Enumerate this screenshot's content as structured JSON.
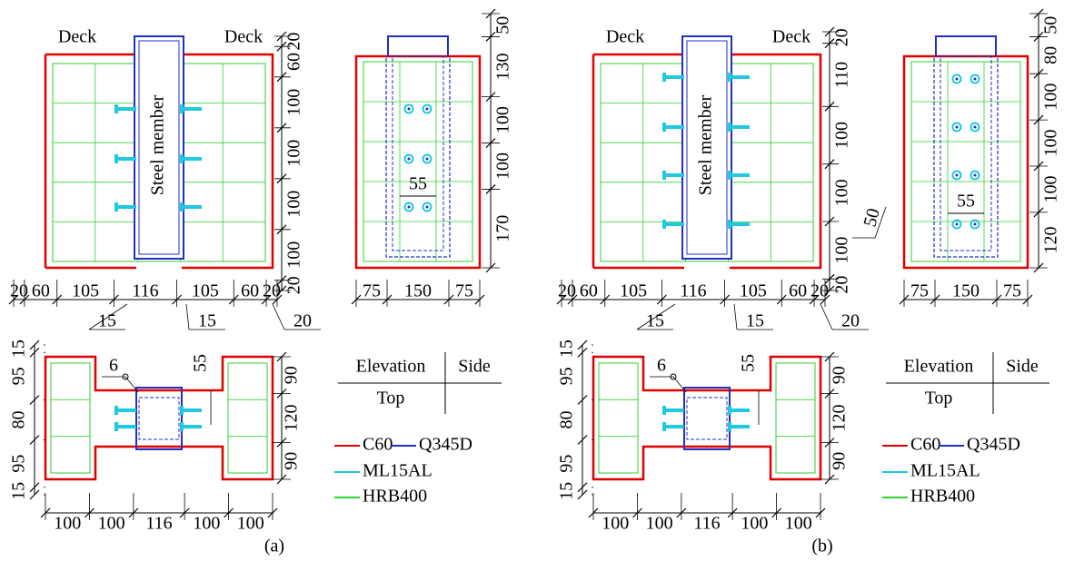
{
  "panels": [
    {
      "label": "(a)",
      "elevation": {
        "deck_left": "Deck",
        "deck_right": "Deck",
        "member": "Steel member",
        "right_dims": [
          20,
          60,
          100,
          100,
          100,
          100,
          20
        ],
        "bottom_dims": [
          20,
          60,
          105,
          116,
          105,
          60,
          20
        ],
        "sub_dims": [
          15,
          15,
          20
        ]
      },
      "side": {
        "right_dims": [
          50,
          130,
          100,
          100,
          170
        ],
        "bottom_dims": [
          75,
          150,
          75
        ],
        "bolt_gap": 55
      },
      "top": {
        "left_dims": [
          15,
          95,
          80,
          95,
          15
        ],
        "weld": 6,
        "gap": 55,
        "right_dims": [
          90,
          120,
          90
        ],
        "bottom_dims": [
          100,
          100,
          116,
          100,
          100
        ]
      },
      "view_table": {
        "elevation": "Elevation",
        "side": "Side",
        "top": "Top"
      },
      "legend": [
        "C60",
        "Q345D",
        "ML15AL",
        "HRB400"
      ]
    },
    {
      "label": "(b)",
      "elevation": {
        "deck_left": "Deck",
        "deck_right": "Deck",
        "member": "Steel member",
        "right_dims": [
          20,
          110,
          100,
          100,
          100,
          20
        ],
        "slab_dim": 50,
        "bottom_dims": [
          20,
          60,
          105,
          116,
          105,
          60,
          20
        ],
        "sub_dims": [
          15,
          15,
          20
        ]
      },
      "side": {
        "right_dims": [
          50,
          80,
          100,
          100,
          100,
          120
        ],
        "bottom_dims": [
          75,
          150,
          75
        ],
        "bolt_gap": 55
      },
      "top": {
        "left_dims": [
          15,
          95,
          80,
          95,
          15
        ],
        "weld": 6,
        "gap": 55,
        "right_dims": [
          90,
          120,
          90
        ],
        "bottom_dims": [
          100,
          100,
          116,
          100,
          100
        ]
      },
      "view_table": {
        "elevation": "Elevation",
        "side": "Side",
        "top": "Top"
      },
      "legend": [
        "C60",
        "Q345D",
        "ML15AL",
        "HRB400"
      ]
    }
  ]
}
